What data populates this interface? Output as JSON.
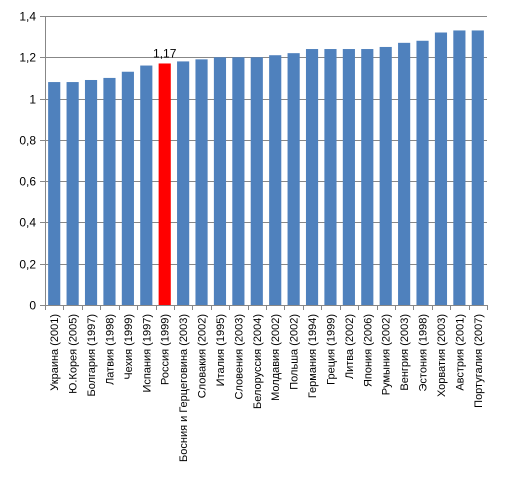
{
  "chart_data": {
    "type": "bar",
    "categories": [
      "Украина (2001)",
      "Ю.Корея (2005)",
      "Болгария (1997)",
      "Латвия (1998)",
      "Чехия (1999)",
      "Испания (1997)",
      "Россия (1999)",
      "Босния и Герцеговина (2003)",
      "Словакия (2002)",
      "Италия (1995)",
      "Словения (2003)",
      "Белоруссия (2004)",
      "Молдавия (2002)",
      "Польша (2002)",
      "Германия (1994)",
      "Греция (1999)",
      "Литва (2002)",
      "Япония (2006)",
      "Румыния (2002)",
      "Венгрия (2003)",
      "Эстония (1998)",
      "Хорватия (2003)",
      "Австрия (2001)",
      "Португалия (2007)"
    ],
    "values": [
      1.08,
      1.08,
      1.09,
      1.1,
      1.13,
      1.16,
      1.17,
      1.18,
      1.19,
      1.2,
      1.2,
      1.2,
      1.21,
      1.22,
      1.24,
      1.24,
      1.24,
      1.24,
      1.25,
      1.27,
      1.28,
      1.32,
      1.33,
      1.33
    ],
    "highlight_index": 6,
    "highlight_label": "1,17",
    "y_ticks": [
      "0",
      "0,2",
      "0,4",
      "0,6",
      "0,8",
      "1",
      "1,2",
      "1,4"
    ],
    "ylim": [
      0,
      1.4
    ],
    "grid": true,
    "legend": "none",
    "colors": {
      "bar": "#4F81BD",
      "highlight": "#FF0000",
      "grid": "#878787",
      "axis": "#878787"
    }
  }
}
